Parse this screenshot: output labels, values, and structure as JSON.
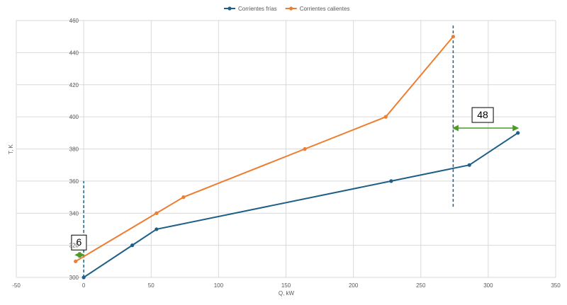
{
  "chart_data": {
    "type": "line",
    "xlabel": "Q, kW",
    "ylabel": "T, K",
    "xlim": [
      -50,
      350
    ],
    "ylim": [
      300,
      460
    ],
    "xticks": [
      -50,
      0,
      50,
      100,
      150,
      200,
      250,
      300,
      350
    ],
    "yticks": [
      300,
      320,
      340,
      360,
      380,
      400,
      420,
      440,
      460
    ],
    "grid": true,
    "legend_position": "top-center",
    "series": [
      {
        "name": "Corrientes frías",
        "color": "#1f5f86",
        "x": [
          0,
          36,
          54,
          228,
          286,
          322
        ],
        "y": [
          300,
          320,
          330,
          360,
          370,
          390
        ]
      },
      {
        "name": "Corrientes calientes",
        "color": "#ed7d31",
        "x": [
          -6,
          54,
          74,
          164,
          224,
          274
        ],
        "y": [
          310,
          340,
          350,
          380,
          400,
          450
        ]
      }
    ],
    "annotations": [
      {
        "label": "6",
        "x_from": -6,
        "x_to": 0,
        "y": 314,
        "color": "#4c9a2a"
      },
      {
        "label": "48",
        "x_from": 274,
        "x_to": 322,
        "y": 393,
        "color": "#4c9a2a"
      }
    ],
    "vlines": [
      {
        "x": 0,
        "y_from": 300,
        "y_to": 360,
        "color": "#1f5f86"
      },
      {
        "x": 274,
        "y_from": 344,
        "y_to": 458,
        "color": "#1f5f86"
      }
    ]
  }
}
